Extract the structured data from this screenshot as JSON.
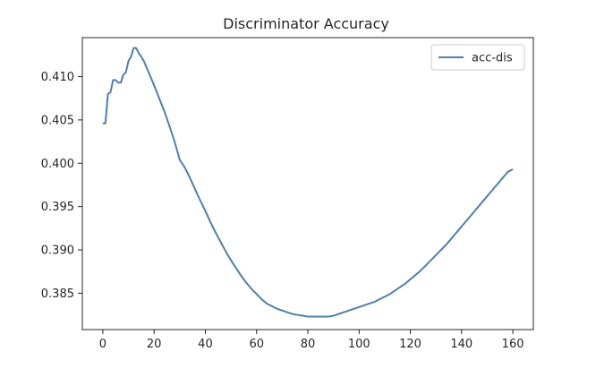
{
  "chart_data": {
    "type": "line",
    "title": "Discriminator Accuracy",
    "xlabel": "",
    "ylabel": "",
    "xlim": [
      -8,
      168
    ],
    "ylim": [
      0.3808,
      0.4145
    ],
    "xticks": [
      0,
      20,
      40,
      60,
      80,
      100,
      120,
      140,
      160
    ],
    "xtick_labels": [
      "0",
      "20",
      "40",
      "60",
      "80",
      "100",
      "120",
      "140",
      "160"
    ],
    "yticks": [
      0.385,
      0.39,
      0.395,
      0.4,
      0.405,
      0.41
    ],
    "ytick_labels": [
      "0.385",
      "0.390",
      "0.395",
      "0.400",
      "0.405",
      "0.410"
    ],
    "grid": false,
    "legend": {
      "position": "top-right",
      "entries": [
        "acc-dis"
      ]
    },
    "series": [
      {
        "name": "acc-dis",
        "color": "#4c7fb0",
        "x": [
          0,
          1,
          2,
          3,
          4,
          5,
          6,
          7,
          8,
          9,
          10,
          11,
          12,
          13,
          14,
          15,
          16,
          17,
          18,
          19,
          20,
          22,
          24,
          26,
          28,
          30,
          32,
          34,
          36,
          38,
          40,
          42,
          44,
          46,
          48,
          50,
          52,
          54,
          56,
          58,
          60,
          62,
          64,
          66,
          68,
          70,
          72,
          74,
          76,
          78,
          80,
          82,
          84,
          86,
          88,
          90,
          92,
          94,
          96,
          98,
          100,
          102,
          104,
          106,
          108,
          110,
          112,
          114,
          116,
          118,
          120,
          122,
          124,
          126,
          128,
          130,
          132,
          134,
          136,
          138,
          140,
          142,
          144,
          146,
          148,
          150,
          152,
          154,
          156,
          158,
          160
        ],
        "values": [
          0.4046,
          0.4046,
          0.408,
          0.4082,
          0.4096,
          0.4096,
          0.4093,
          0.4093,
          0.4102,
          0.4105,
          0.4118,
          0.4123,
          0.4133,
          0.4133,
          0.4127,
          0.4123,
          0.4118,
          0.4111,
          0.4104,
          0.4097,
          0.409,
          0.4075,
          0.406,
          0.4043,
          0.4025,
          0.4004,
          0.3995,
          0.3983,
          0.397,
          0.3957,
          0.3945,
          0.3932,
          0.392,
          0.3909,
          0.3898,
          0.3888,
          0.3879,
          0.387,
          0.3862,
          0.3855,
          0.3849,
          0.3843,
          0.3838,
          0.3835,
          0.3832,
          0.383,
          0.3828,
          0.3826,
          0.3825,
          0.3824,
          0.3823,
          0.3823,
          0.3823,
          0.3823,
          0.3823,
          0.3824,
          0.3826,
          0.3828,
          0.383,
          0.3832,
          0.3834,
          0.3836,
          0.3838,
          0.384,
          0.3843,
          0.3846,
          0.3849,
          0.3853,
          0.3857,
          0.3861,
          0.3866,
          0.3871,
          0.3876,
          0.3882,
          0.3888,
          0.3894,
          0.39,
          0.3906,
          0.3913,
          0.392,
          0.3927,
          0.3934,
          0.3941,
          0.3948,
          0.3955,
          0.3962,
          0.3969,
          0.3976,
          0.3983,
          0.399,
          0.3993
        ]
      }
    ]
  }
}
